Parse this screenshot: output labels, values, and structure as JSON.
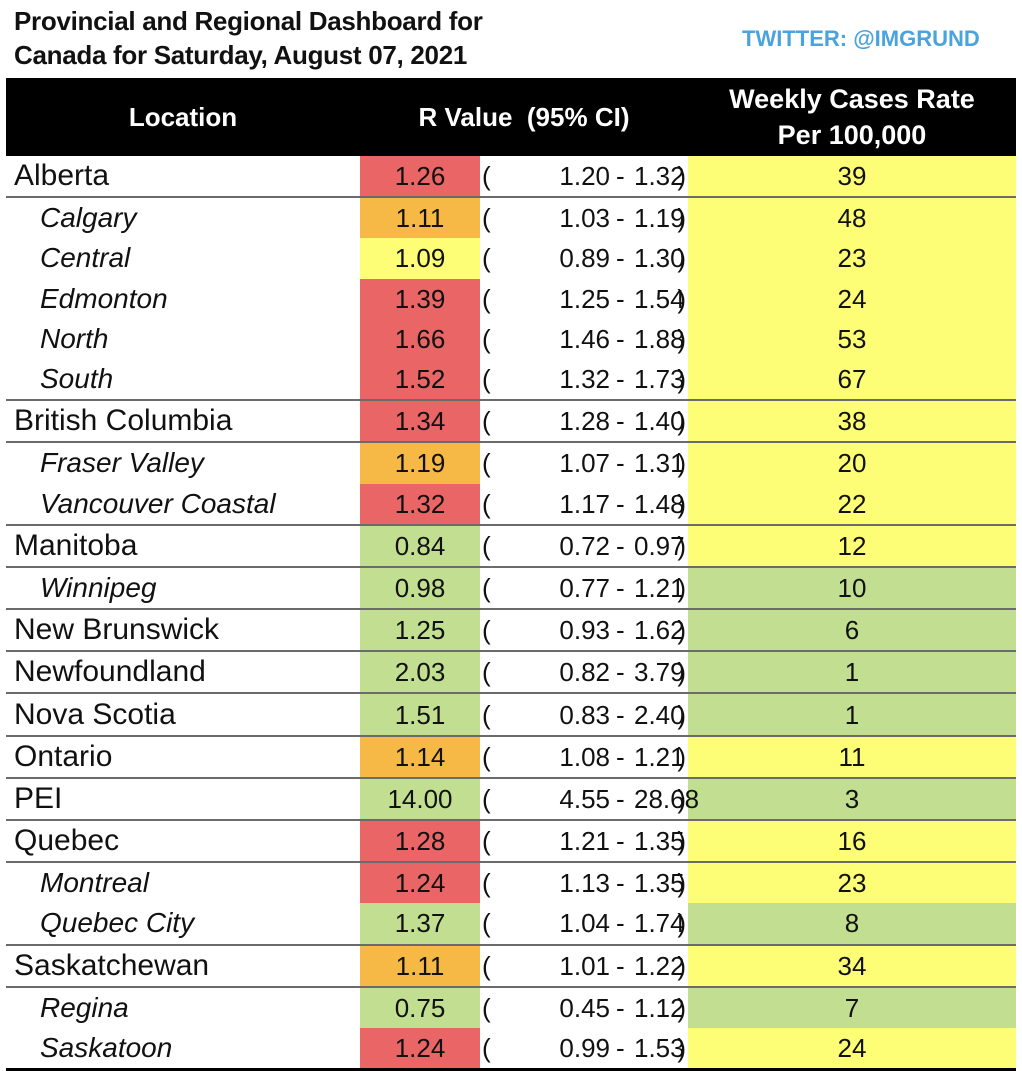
{
  "title_line1": "Provincial and Regional Dashboard for",
  "title_line2": "Canada for Saturday, August 07, 2021",
  "twitter": "TWITTER: @IMGRUND",
  "colors": {
    "red": "#ea6565",
    "orange": "#f6b945",
    "yellow": "#fdfd76",
    "green": "#c2df91",
    "header": "#000000",
    "twitter": "#4aa3de"
  },
  "chart_data": {
    "type": "table",
    "columns": [
      "Location",
      "R Value  (95% CI)",
      "Weekly Cases Rate Per 100,000"
    ],
    "header": {
      "location": "Location",
      "rvalue": "R Value  (95% CI)",
      "rate_line1": "Weekly Cases Rate",
      "rate_line2": "Per 100,000"
    },
    "rows": [
      {
        "location": "Alberta",
        "level": "province",
        "r": "1.26",
        "r_color": "red",
        "ci_low": "1.20",
        "ci_high": "1.32",
        "rate": "39",
        "rate_color": "yellow"
      },
      {
        "location": "Calgary",
        "level": "region",
        "r": "1.11",
        "r_color": "orange",
        "ci_low": "1.03",
        "ci_high": "1.19",
        "rate": "48",
        "rate_color": "yellow"
      },
      {
        "location": "Central",
        "level": "region",
        "r": "1.09",
        "r_color": "yellow",
        "ci_low": "0.89",
        "ci_high": "1.30",
        "rate": "23",
        "rate_color": "yellow"
      },
      {
        "location": "Edmonton",
        "level": "region",
        "r": "1.39",
        "r_color": "red",
        "ci_low": "1.25",
        "ci_high": "1.54",
        "rate": "24",
        "rate_color": "yellow"
      },
      {
        "location": "North",
        "level": "region",
        "r": "1.66",
        "r_color": "red",
        "ci_low": "1.46",
        "ci_high": "1.88",
        "rate": "53",
        "rate_color": "yellow"
      },
      {
        "location": "South",
        "level": "region",
        "r": "1.52",
        "r_color": "red",
        "ci_low": "1.32",
        "ci_high": "1.73",
        "rate": "67",
        "rate_color": "yellow"
      },
      {
        "location": "British Columbia",
        "level": "province",
        "r": "1.34",
        "r_color": "red",
        "ci_low": "1.28",
        "ci_high": "1.40",
        "rate": "38",
        "rate_color": "yellow"
      },
      {
        "location": "Fraser Valley",
        "level": "region",
        "r": "1.19",
        "r_color": "orange",
        "ci_low": "1.07",
        "ci_high": "1.31",
        "rate": "20",
        "rate_color": "yellow"
      },
      {
        "location": "Vancouver Coastal",
        "level": "region",
        "r": "1.32",
        "r_color": "red",
        "ci_low": "1.17",
        "ci_high": "1.48",
        "rate": "22",
        "rate_color": "yellow"
      },
      {
        "location": "Manitoba",
        "level": "province",
        "r": "0.84",
        "r_color": "green",
        "ci_low": "0.72",
        "ci_high": "0.97",
        "rate": "12",
        "rate_color": "yellow"
      },
      {
        "location": "Winnipeg",
        "level": "region",
        "r": "0.98",
        "r_color": "green",
        "ci_low": "0.77",
        "ci_high": "1.21",
        "rate": "10",
        "rate_color": "green"
      },
      {
        "location": "New Brunswick",
        "level": "province",
        "r": "1.25",
        "r_color": "green",
        "ci_low": "0.93",
        "ci_high": "1.62",
        "rate": "6",
        "rate_color": "green"
      },
      {
        "location": "Newfoundland",
        "level": "province",
        "r": "2.03",
        "r_color": "green",
        "ci_low": "0.82",
        "ci_high": "3.79",
        "rate": "1",
        "rate_color": "green"
      },
      {
        "location": "Nova Scotia",
        "level": "province",
        "r": "1.51",
        "r_color": "green",
        "ci_low": "0.83",
        "ci_high": "2.40",
        "rate": "1",
        "rate_color": "green"
      },
      {
        "location": "Ontario",
        "level": "province",
        "r": "1.14",
        "r_color": "orange",
        "ci_low": "1.08",
        "ci_high": "1.21",
        "rate": "11",
        "rate_color": "yellow"
      },
      {
        "location": "PEI",
        "level": "province",
        "r": "14.00",
        "r_color": "green",
        "ci_low": "4.55",
        "ci_high": "28.68",
        "rate": "3",
        "rate_color": "green"
      },
      {
        "location": "Quebec",
        "level": "province",
        "r": "1.28",
        "r_color": "red",
        "ci_low": "1.21",
        "ci_high": "1.35",
        "rate": "16",
        "rate_color": "yellow"
      },
      {
        "location": "Montreal",
        "level": "region",
        "r": "1.24",
        "r_color": "red",
        "ci_low": "1.13",
        "ci_high": "1.35",
        "rate": "23",
        "rate_color": "yellow"
      },
      {
        "location": "Quebec City",
        "level": "region",
        "r": "1.37",
        "r_color": "green",
        "ci_low": "1.04",
        "ci_high": "1.74",
        "rate": "8",
        "rate_color": "green"
      },
      {
        "location": "Saskatchewan",
        "level": "province",
        "r": "1.11",
        "r_color": "orange",
        "ci_low": "1.01",
        "ci_high": "1.22",
        "rate": "34",
        "rate_color": "yellow"
      },
      {
        "location": "Regina",
        "level": "region",
        "r": "0.75",
        "r_color": "green",
        "ci_low": "0.45",
        "ci_high": "1.12",
        "rate": "7",
        "rate_color": "green"
      },
      {
        "location": "Saskatoon",
        "level": "region",
        "r": "1.24",
        "r_color": "red",
        "ci_low": "0.99",
        "ci_high": "1.53",
        "rate": "24",
        "rate_color": "yellow"
      }
    ]
  }
}
